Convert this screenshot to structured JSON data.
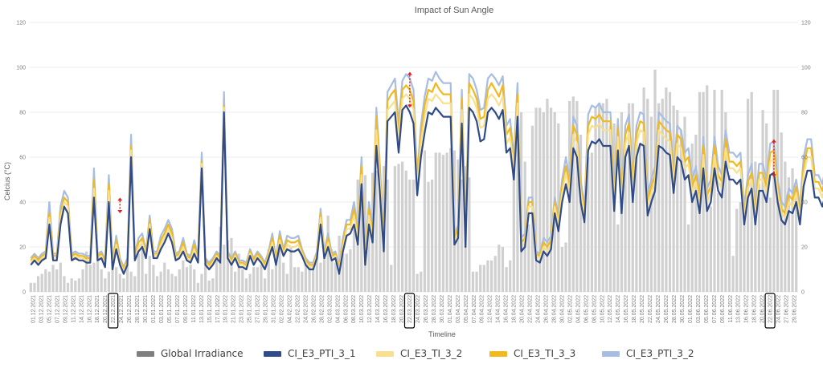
{
  "chart_data": {
    "type": "bar+line",
    "title": "Impact of Sun Angle",
    "xlabel": "Timeline",
    "ylabel": "Celcius (°C)",
    "ylim": [
      0,
      120
    ],
    "y_ticks": [
      "0",
      "20",
      "40",
      "60",
      "80",
      "100",
      "120"
    ],
    "y2_ticks": [
      "0",
      "20",
      "40",
      "60",
      "80",
      "100",
      "120"
    ],
    "x_tick_labels": [
      "01.12.2021",
      "03.12.2021",
      "05.12.2021",
      "07.12.2021",
      "09.12.2021",
      "11.12.2021",
      "14.12.2021",
      "16.12.2021",
      "18.12.2021",
      "20.12.2021",
      "22.12.2021",
      "24.12.2021",
      "26.12.2021",
      "28.12.2021",
      "30.12.2021",
      "01.01.2022",
      "03.01.2022",
      "05.01.2022",
      "07.01.2022",
      "09.01.2022",
      "11.01.2022",
      "13.01.2022",
      "15.01.2022",
      "17.01.2022",
      "19.01.2022",
      "21.01.2022",
      "23.01.2022",
      "25.01.2022",
      "27.01.2022",
      "29.01.2022",
      "31.01.2022",
      "02.02.2022",
      "04.02.2022",
      "22.02.2022",
      "24.02.2022",
      "26.02.2022",
      "28.02.2022",
      "02.03.2022",
      "04.03.2022",
      "06.03.2022",
      "08.03.2022",
      "10.03.2022",
      "12.03.2022",
      "14.03.2022",
      "16.03.2022",
      "18.03.2022",
      "20.03.2022",
      "22.03.2022",
      "24.03.2022",
      "26.03.2022",
      "28.03.2022",
      "30.03.2022",
      "01.04.2022",
      "03.04.2022",
      "05.04.2022",
      "07.04.2022",
      "09.04.2022",
      "12.04.2022",
      "14.04.2022",
      "16.04.2022",
      "18.04.2022",
      "20.04.2022",
      "22.04.2022",
      "24.04.2022",
      "26.04.2022",
      "28.04.2022",
      "30.04.2022",
      "02.05.2022",
      "04.05.2022",
      "06.05.2022",
      "08.05.2022",
      "10.05.2022",
      "12.05.2022",
      "14.05.2022",
      "16.05.2022",
      "18.05.2022",
      "20.05.2022",
      "22.05.2022",
      "24.05.2022",
      "26.05.2022",
      "28.05.2022",
      "30.05.2022",
      "01.06.2022",
      "03.06.2022",
      "05.06.2022",
      "07.06.2022",
      "09.06.2022",
      "11.06.2022",
      "13.06.2022",
      "16.06.2022",
      "18.06.2022",
      "20.06.2022",
      "22.06.2022",
      "24.06.2022",
      "27.06.2022",
      "29.06.2022"
    ],
    "highlighted_ticks": [
      "22.12.2021",
      "22.03.2022",
      "22.06.2022"
    ],
    "series": [
      {
        "name": "Global Irradiance",
        "type": "bar",
        "color": "#d0d0d0",
        "legend_color": "#7f7f7f",
        "values": [
          4,
          4,
          7,
          8,
          10,
          9,
          12,
          10,
          13,
          7,
          4,
          6,
          5,
          6,
          10,
          18,
          12,
          13,
          17,
          10,
          6,
          9,
          12,
          11,
          8,
          6,
          12,
          9,
          7,
          17,
          24,
          8,
          16,
          12,
          7,
          9,
          13,
          10,
          8,
          7,
          10,
          14,
          11,
          12,
          10,
          4,
          8,
          13,
          5,
          6,
          16,
          29,
          21,
          23,
          24,
          9,
          17,
          10,
          6,
          8,
          11,
          11,
          12,
          6,
          19,
          10,
          12,
          20,
          13,
          8,
          20,
          11,
          11,
          9,
          12,
          11,
          12,
          17,
          13,
          20,
          34,
          19,
          13,
          25,
          17,
          17,
          19,
          28,
          50,
          52,
          52,
          34,
          53,
          54,
          49,
          56,
          50,
          12,
          56,
          57,
          58,
          54,
          50,
          50,
          8,
          9,
          63,
          49,
          50,
          62,
          62,
          61,
          62,
          64,
          63,
          59,
          50,
          56,
          51,
          9,
          9,
          12,
          12,
          14,
          14,
          16,
          21,
          20,
          11,
          14,
          60,
          81,
          80,
          58,
          30,
          74,
          82,
          82,
          80,
          86,
          82,
          80,
          75,
          20,
          22,
          85,
          87,
          85,
          70,
          31,
          60,
          62,
          82,
          84,
          84,
          86,
          74,
          75,
          30,
          80,
          64,
          84,
          84,
          72,
          66,
          91,
          86,
          78,
          99,
          84,
          86,
          91,
          89,
          83,
          81,
          72,
          78,
          30,
          66,
          70,
          89,
          89,
          92,
          38,
          90,
          44,
          90,
          80,
          52,
          16,
          37,
          40,
          33,
          86,
          89,
          58,
          48,
          81,
          75,
          42,
          90,
          90,
          71,
          58,
          51,
          55,
          45
        ]
      },
      {
        "name": "CI_E3_PTI_3_1",
        "type": "line",
        "color": "#2f4b8a",
        "values": [
          12,
          14,
          12,
          14,
          15,
          30,
          14,
          14,
          30,
          38,
          35,
          14,
          15,
          14,
          14,
          13,
          13,
          42,
          14,
          15,
          11,
          40,
          10,
          19,
          12,
          8,
          12,
          60,
          14,
          18,
          20,
          15,
          28,
          15,
          15,
          19,
          22,
          26,
          22,
          14,
          15,
          18,
          14,
          13,
          17,
          13,
          55,
          12,
          10,
          12,
          15,
          13,
          80,
          15,
          12,
          15,
          11,
          11,
          10,
          16,
          12,
          15,
          13,
          10,
          15,
          20,
          12,
          21,
          16,
          19,
          18,
          18,
          19,
          16,
          12,
          10,
          10,
          15,
          30,
          15,
          20,
          14,
          15,
          8,
          18,
          25,
          26,
          30,
          21,
          48,
          12,
          30,
          22,
          65,
          43,
          18,
          76,
          78,
          80,
          62,
          81,
          83,
          80,
          75,
          43,
          60,
          71,
          80,
          79,
          82,
          80,
          78,
          78,
          78,
          21,
          24,
          75,
          20,
          82,
          80,
          76,
          67,
          68,
          80,
          82,
          80,
          77,
          81,
          62,
          64,
          50,
          78,
          18,
          20,
          35,
          35,
          14,
          13,
          18,
          16,
          19,
          35,
          27,
          40,
          48,
          40,
          64,
          60,
          40,
          31,
          63,
          67,
          66,
          68,
          65,
          65,
          65,
          36,
          63,
          35,
          60,
          65,
          40,
          60,
          66,
          65,
          34,
          40,
          45,
          65,
          64,
          62,
          61,
          44,
          60,
          58,
          50,
          52,
          40,
          45,
          35,
          55,
          36,
          40,
          55,
          45,
          42,
          58,
          50,
          50,
          48,
          50,
          30,
          42,
          46,
          30,
          45,
          45,
          40,
          52,
          53,
          40,
          32,
          30,
          36,
          35,
          40,
          30,
          47,
          54,
          54,
          42,
          42,
          38,
          44,
          40,
          42,
          42,
          44,
          42,
          44,
          51,
          50,
          48,
          54,
          48,
          42,
          52,
          43,
          50,
          47,
          48,
          30,
          60,
          42,
          37,
          60
        ]
      },
      {
        "name": "CI_E3_TI_3_2",
        "type": "line",
        "color": "#f8e08e",
        "values": [
          13,
          15,
          13,
          15,
          16,
          33,
          15,
          15,
          33,
          40,
          38,
          15,
          16,
          15,
          15,
          14,
          14,
          46,
          15,
          16,
          12,
          45,
          11,
          21,
          13,
          9,
          13,
          63,
          15,
          20,
          22,
          16,
          30,
          16,
          16,
          21,
          24,
          28,
          24,
          15,
          16,
          20,
          15,
          14,
          19,
          14,
          57,
          13,
          11,
          13,
          16,
          14,
          82,
          16,
          13,
          16,
          12,
          12,
          11,
          17,
          13,
          16,
          14,
          11,
          16,
          22,
          13,
          23,
          17,
          21,
          20,
          20,
          21,
          17,
          13,
          11,
          11,
          16,
          33,
          16,
          22,
          15,
          16,
          9,
          20,
          28,
          28,
          34,
          24,
          52,
          13,
          34,
          25,
          72,
          48,
          20,
          81,
          83,
          85,
          67,
          86,
          88,
          86,
          81,
          46,
          66,
          78,
          86,
          85,
          88,
          86,
          84,
          84,
          84,
          23,
          26,
          81,
          22,
          88,
          86,
          82,
          73,
          74,
          86,
          88,
          86,
          83,
          87,
          66,
          69,
          54,
          84,
          20,
          22,
          38,
          38,
          16,
          15,
          20,
          18,
          21,
          38,
          30,
          44,
          53,
          44,
          70,
          66,
          44,
          34,
          70,
          74,
          73,
          75,
          72,
          72,
          72,
          40,
          69,
          39,
          66,
          71,
          44,
          66,
          72,
          71,
          38,
          44,
          49,
          72,
          70,
          68,
          67,
          48,
          66,
          64,
          55,
          57,
          44,
          49,
          38,
          61,
          40,
          44,
          61,
          49,
          46,
          64,
          55,
          55,
          53,
          55,
          33,
          46,
          50,
          33,
          50,
          50,
          44,
          58,
          59,
          44,
          35,
          33,
          40,
          38,
          44,
          33,
          52,
          60,
          60,
          46,
          46,
          42,
          49,
          44,
          46,
          46,
          49,
          46,
          49,
          56,
          55,
          53,
          60,
          53,
          46,
          58,
          48,
          55,
          52,
          53,
          33,
          66,
          46,
          41,
          66
        ]
      },
      {
        "name": "CI_E3_TI_3_3",
        "type": "line",
        "color": "#f2b91e",
        "values": [
          14,
          16,
          14,
          16,
          17,
          35,
          16,
          16,
          35,
          42,
          40,
          16,
          17,
          16,
          16,
          15,
          15,
          50,
          16,
          17,
          13,
          48,
          12,
          23,
          14,
          10,
          14,
          65,
          16,
          22,
          24,
          17,
          32,
          17,
          17,
          23,
          26,
          30,
          26,
          16,
          17,
          22,
          16,
          15,
          21,
          15,
          58,
          14,
          12,
          14,
          17,
          15,
          83,
          17,
          14,
          17,
          13,
          13,
          12,
          18,
          14,
          17,
          15,
          12,
          17,
          24,
          14,
          25,
          18,
          23,
          22,
          22,
          23,
          18,
          14,
          12,
          12,
          17,
          35,
          17,
          24,
          16,
          17,
          10,
          22,
          30,
          30,
          37,
          26,
          56,
          14,
          37,
          27,
          78,
          52,
          22,
          85,
          88,
          90,
          71,
          90,
          92,
          90,
          85,
          49,
          70,
          83,
          90,
          89,
          93,
          90,
          88,
          88,
          88,
          24,
          28,
          86,
          24,
          93,
          90,
          86,
          77,
          78,
          90,
          93,
          90,
          87,
          92,
          70,
          73,
          57,
          88,
          22,
          24,
          40,
          40,
          17,
          16,
          22,
          20,
          23,
          40,
          32,
          47,
          56,
          47,
          74,
          70,
          47,
          36,
          74,
          78,
          77,
          79,
          76,
          76,
          76,
          43,
          73,
          41,
          70,
          75,
          47,
          70,
          76,
          75,
          41,
          47,
          52,
          76,
          74,
          72,
          71,
          51,
          70,
          68,
          58,
          60,
          47,
          52,
          41,
          65,
          43,
          47,
          65,
          52,
          49,
          68,
          58,
          58,
          56,
          58,
          35,
          49,
          53,
          35,
          53,
          53,
          47,
          62,
          63,
          47,
          37,
          35,
          43,
          41,
          47,
          35,
          56,
          64,
          64,
          49,
          49,
          45,
          52,
          47,
          49,
          49,
          52,
          49,
          52,
          60,
          58,
          56,
          64,
          56,
          49,
          62,
          51,
          58,
          55,
          56,
          35,
          70,
          49,
          44,
          70
        ]
      },
      {
        "name": "CI_E3_PTI_3_2",
        "type": "line",
        "color": "#a7bde1",
        "values": [
          15,
          17,
          15,
          17,
          18,
          40,
          17,
          17,
          38,
          45,
          42,
          17,
          18,
          17,
          17,
          16,
          16,
          55,
          17,
          18,
          14,
          52,
          13,
          25,
          15,
          11,
          15,
          70,
          17,
          24,
          26,
          18,
          34,
          18,
          18,
          25,
          28,
          32,
          28,
          17,
          18,
          24,
          17,
          16,
          23,
          16,
          62,
          15,
          13,
          15,
          18,
          16,
          89,
          18,
          15,
          18,
          14,
          14,
          13,
          19,
          15,
          18,
          16,
          13,
          18,
          26,
          15,
          27,
          19,
          25,
          24,
          24,
          25,
          19,
          15,
          13,
          13,
          18,
          37,
          18,
          26,
          17,
          18,
          11,
          24,
          32,
          32,
          40,
          28,
          60,
          15,
          40,
          29,
          82,
          55,
          24,
          89,
          92,
          95,
          75,
          94,
          97,
          95,
          90,
          52,
          74,
          87,
          95,
          94,
          98,
          95,
          93,
          93,
          93,
          25,
          30,
          90,
          26,
          97,
          95,
          90,
          81,
          82,
          95,
          97,
          95,
          92,
          96,
          74,
          77,
          60,
          93,
          24,
          26,
          42,
          42,
          18,
          17,
          24,
          22,
          25,
          42,
          34,
          50,
          60,
          50,
          78,
          74,
          50,
          38,
          79,
          83,
          82,
          84,
          80,
          80,
          80,
          46,
          77,
          44,
          74,
          79,
          50,
          74,
          80,
          79,
          44,
          50,
          56,
          80,
          78,
          76,
          75,
          54,
          74,
          72,
          62,
          64,
          50,
          56,
          44,
          69,
          46,
          50,
          69,
          56,
          52,
          72,
          62,
          62,
          60,
          62,
          38,
          52,
          57,
          38,
          57,
          57,
          50,
          66,
          67,
          50,
          40,
          38,
          46,
          44,
          50,
          38,
          60,
          68,
          68,
          52,
          52,
          48,
          56,
          50,
          52,
          52,
          56,
          52,
          56,
          64,
          62,
          60,
          68,
          60,
          52,
          66,
          55,
          62,
          59,
          60,
          38,
          75,
          52,
          47,
          75
        ]
      }
    ],
    "annotations": [
      "vertical red arrows marking the temperature gap between series at 22.12.2021, 22.03.2022 and 22.06.2022"
    ],
    "grid": "horizontal",
    "legend_position": "bottom"
  }
}
